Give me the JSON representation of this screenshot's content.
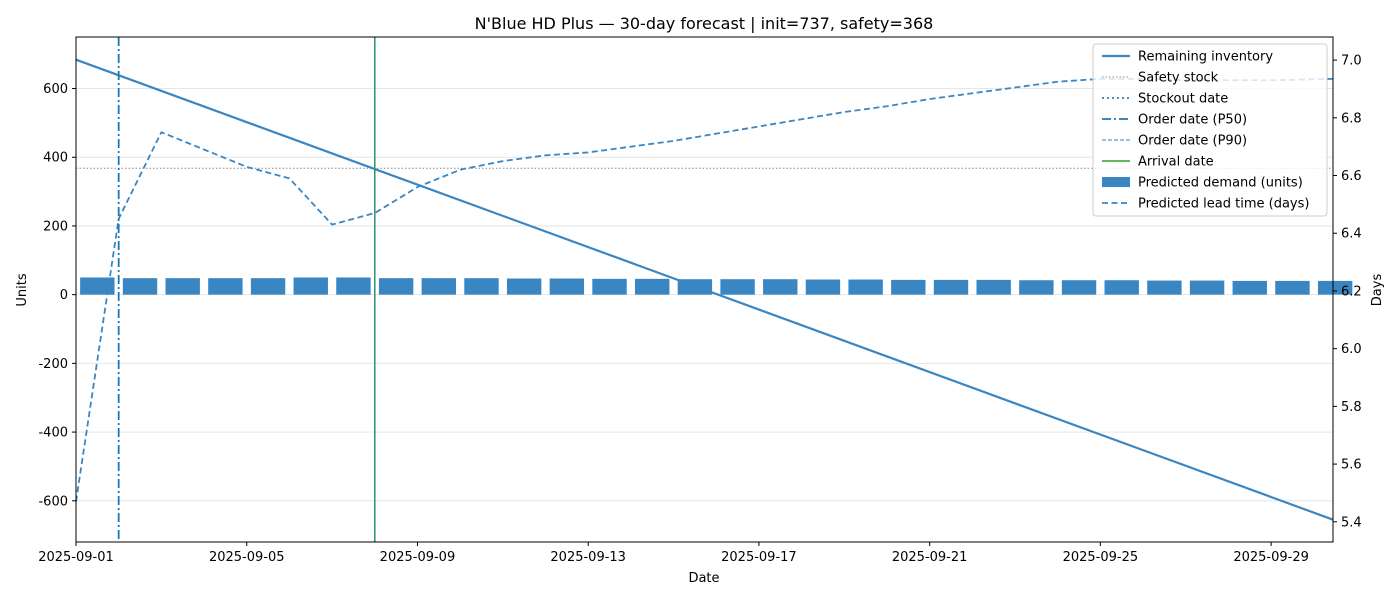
{
  "chart_data": {
    "type": "bar+line",
    "title": "N'Blue HD Plus — 30-day forecast | init=737, safety=368",
    "xlabel": "Date",
    "ylabel_left": "Units",
    "ylabel_right": "Days",
    "x_start": "2025-09-01",
    "xlim_days": [
      0,
      29.45
    ],
    "x_ticks": [
      {
        "day": 0,
        "label": "2025-09-01"
      },
      {
        "day": 4,
        "label": "2025-09-05"
      },
      {
        "day": 8,
        "label": "2025-09-09"
      },
      {
        "day": 12,
        "label": "2025-09-13"
      },
      {
        "day": 16,
        "label": "2025-09-17"
      },
      {
        "day": 20,
        "label": "2025-09-21"
      },
      {
        "day": 24,
        "label": "2025-09-25"
      },
      {
        "day": 28,
        "label": "2025-09-29"
      }
    ],
    "ylim_left": [
      -720,
      750
    ],
    "y_ticks_left": [
      -600,
      -400,
      -200,
      0,
      200,
      400,
      600
    ],
    "ylim_right": [
      5.33,
      7.08
    ],
    "y_ticks_right": [
      5.4,
      5.6,
      5.8,
      6.0,
      6.2,
      6.4,
      6.6,
      6.8,
      7.0
    ],
    "grid": "horizontal",
    "legend_position": "top-right",
    "series": [
      {
        "name": "Remaining inventory",
        "kind": "line",
        "axis": "left",
        "color": "#3a86c2",
        "points": [
          [
            0,
            684
          ],
          [
            29.45,
            -655
          ]
        ]
      },
      {
        "name": "Safety stock",
        "kind": "hline",
        "axis": "left",
        "color": "#8a8a8a",
        "value": 368
      },
      {
        "name": "Stockout date",
        "kind": "vline",
        "color": "#2f7fc1"
      },
      {
        "name": "Order date (P50)",
        "kind": "vline",
        "color": "#1f77b4",
        "day": 1
      },
      {
        "name": "Order date (P90)",
        "kind": "vline",
        "color": "#2f7fc1",
        "day": 7
      },
      {
        "name": "Arrival date",
        "kind": "vline",
        "color": "#2ca02c",
        "day": 7
      },
      {
        "name": "Predicted demand (units)",
        "kind": "bar",
        "axis": "left",
        "color": "#3a86c2",
        "values": [
          50,
          48,
          48,
          48,
          48,
          50,
          50,
          48,
          48,
          48,
          47,
          47,
          46,
          46,
          45,
          45,
          45,
          44,
          44,
          43,
          43,
          43,
          42,
          42,
          42,
          41,
          41,
          40,
          40,
          40
        ]
      },
      {
        "name": "Predicted lead time (days)",
        "kind": "dashed-line",
        "axis": "right",
        "color": "#3a86c2",
        "days": [
          0,
          1,
          2,
          3,
          4,
          5,
          6,
          7,
          8,
          9,
          10,
          11,
          12,
          13,
          14,
          15,
          16,
          17,
          18,
          19,
          20,
          21,
          22,
          23,
          24,
          25,
          26,
          27,
          28,
          29.45
        ],
        "values": [
          5.47,
          6.45,
          6.75,
          6.69,
          6.63,
          6.59,
          6.43,
          6.47,
          6.56,
          6.62,
          6.65,
          6.67,
          6.68,
          6.7,
          6.72,
          6.745,
          6.77,
          6.795,
          6.82,
          6.84,
          6.865,
          6.885,
          6.905,
          6.925,
          6.935,
          6.935,
          6.93,
          6.93,
          6.93,
          6.935
        ]
      }
    ]
  }
}
